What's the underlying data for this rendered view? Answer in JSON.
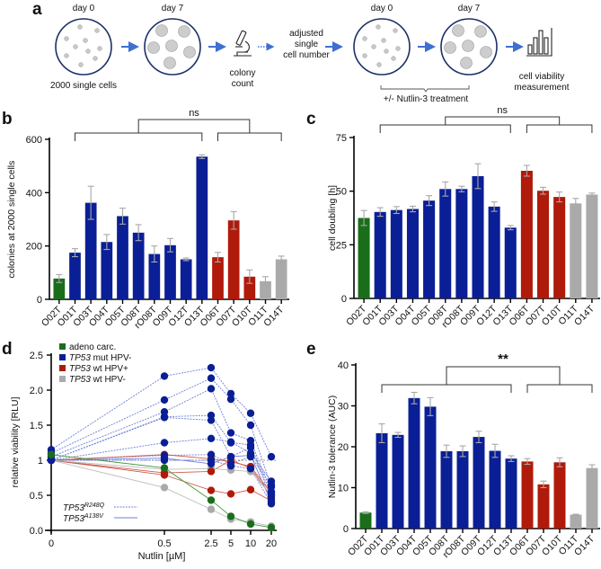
{
  "panels": {
    "a": {
      "letter": "a",
      "step1_top": "day 0",
      "step1_bottom": "2000 single cells",
      "step2_top": "day 7",
      "step3_label_1": "colony",
      "step3_label_2": "count",
      "step4_label_1": "adjusted",
      "step4_label_2": "single",
      "step4_label_3": "cell number",
      "step5_top": "day 0",
      "step6_top": "day 7",
      "treatment_label": "+/- Nutlin-3 treatment",
      "step7_label_1": "cell viability",
      "step7_label_2": "measurement",
      "icons": [
        "petri-dish-small-cells",
        "petri-dish-colonies",
        "microscope",
        "bar-chart"
      ]
    },
    "b": {
      "letter": "b"
    },
    "c": {
      "letter": "c"
    },
    "d": {
      "letter": "d"
    },
    "e": {
      "letter": "e"
    }
  },
  "colors": {
    "adeno": "#1a6e1a",
    "mut_hpv_neg": "#0a1f96",
    "wt_hpv_pos": "#b01a0a",
    "wt_hpv_neg": "#aaaaaa",
    "arrow": "#3f6fd1"
  },
  "chart_data": [
    {
      "id": "b",
      "type": "bar",
      "title": "",
      "xlabel": "",
      "ylabel": "colonies at 2000 single cells",
      "ylim": [
        0,
        600
      ],
      "yticks": [
        "0",
        "200",
        "400",
        "600"
      ],
      "categories": [
        "O02T",
        "O01T",
        "O03T",
        "O04T",
        "O05T",
        "O08T",
        "rO08T",
        "O09T",
        "O12T",
        "O13T",
        "O06T",
        "O07T",
        "O10T",
        "O11T",
        "O14T"
      ],
      "groups": [
        "adeno",
        "mut_hpv_neg",
        "mut_hpv_neg",
        "mut_hpv_neg",
        "mut_hpv_neg",
        "mut_hpv_neg",
        "mut_hpv_neg",
        "mut_hpv_neg",
        "mut_hpv_neg",
        "mut_hpv_neg",
        "wt_hpv_pos",
        "wt_hpv_pos",
        "wt_hpv_pos",
        "wt_hpv_neg",
        "wt_hpv_neg"
      ],
      "values": [
        78,
        175,
        362,
        215,
        312,
        250,
        170,
        203,
        150,
        535,
        158,
        296,
        85,
        68,
        150
      ],
      "errors": [
        15,
        15,
        62,
        28,
        30,
        30,
        30,
        25,
        5,
        7,
        18,
        33,
        25,
        17,
        12
      ],
      "significance": {
        "label": "ns",
        "left_group": [
          1,
          9
        ],
        "right_group": [
          10,
          14
        ]
      }
    },
    {
      "id": "c",
      "type": "bar",
      "title": "",
      "xlabel": "",
      "ylabel": "cell doubling [h]",
      "ylim": [
        0,
        75
      ],
      "yticks": [
        "0",
        "25",
        "50",
        "75"
      ],
      "categories": [
        "O02T",
        "O01T",
        "O03T",
        "O04T",
        "O05T",
        "O08T",
        "rO08T",
        "O09T",
        "O12T",
        "O13T",
        "O06T",
        "O07T",
        "O10T",
        "O11T",
        "O14T"
      ],
      "groups": [
        "adeno",
        "mut_hpv_neg",
        "mut_hpv_neg",
        "mut_hpv_neg",
        "mut_hpv_neg",
        "mut_hpv_neg",
        "mut_hpv_neg",
        "mut_hpv_neg",
        "mut_hpv_neg",
        "mut_hpv_neg",
        "wt_hpv_pos",
        "wt_hpv_pos",
        "wt_hpv_pos",
        "wt_hpv_neg",
        "wt_hpv_neg"
      ],
      "values": [
        37.5,
        40.3,
        41.2,
        41.7,
        45.6,
        51.0,
        51.0,
        57.0,
        42.8,
        33.0,
        59.5,
        50.2,
        47.3,
        44.3,
        48.4
      ],
      "errors": [
        3.5,
        2.0,
        1.6,
        1.3,
        2.3,
        3.3,
        1.3,
        5.8,
        2.2,
        1.0,
        2.5,
        1.6,
        2.3,
        2.3,
        0.7
      ],
      "significance": {
        "label": "ns",
        "left_group": [
          1,
          9
        ],
        "right_group": [
          10,
          14
        ]
      }
    },
    {
      "id": "d",
      "type": "line",
      "title": "",
      "xlabel": "Nutlin [µM]",
      "ylabel": "relative viability [RLU]",
      "ylim": [
        0,
        2.5
      ],
      "yticks": [
        "0.0",
        "0.5",
        "1",
        "1.5",
        "2.0",
        "2.5"
      ],
      "x": [
        0,
        0.5,
        2.5,
        5,
        10,
        20
      ],
      "xticks": [
        "0",
        "0.5",
        "2.5",
        "5",
        "10",
        "20"
      ],
      "reference_line": 1,
      "legend": [
        {
          "label_italic": "TP53",
          "label_rest": "",
          "label_full": "adeno carc.",
          "group": "adeno"
        },
        {
          "label_italic": "TP53",
          "label_rest": " mut HPV-",
          "group": "mut_hpv_neg"
        },
        {
          "label_italic": "TP53",
          "label_rest": " wt HPV+",
          "group": "wt_hpv_pos"
        },
        {
          "label_italic": "TP53",
          "label_rest": " wt HPV-",
          "group": "wt_hpv_neg"
        }
      ],
      "line_style_legend": [
        {
          "label": "TP53",
          "sup": "R248Q",
          "style": "dotted"
        },
        {
          "label": "TP53",
          "sup": "A138V",
          "style": "solid"
        }
      ],
      "series": [
        {
          "group": "mut_hpv_neg",
          "style": "dotted",
          "values": [
            1.15,
            2.2,
            2.32,
            1.95,
            1.67,
            1.05
          ]
        },
        {
          "group": "mut_hpv_neg",
          "style": "dotted",
          "values": [
            1.1,
            1.86,
            2.17,
            1.87,
            1.5,
            0.62
          ]
        },
        {
          "group": "mut_hpv_neg",
          "style": "dotted",
          "values": [
            1.05,
            1.69,
            2.02,
            1.39,
            1.28,
            0.55
          ]
        },
        {
          "group": "mut_hpv_neg",
          "style": "dotted",
          "values": [
            1.0,
            1.62,
            1.64,
            1.25,
            1.22,
            0.5
          ]
        },
        {
          "group": "mut_hpv_neg",
          "style": "dotted",
          "values": [
            1.0,
            1.61,
            1.57,
            1.05,
            1.18,
            0.45
          ]
        },
        {
          "group": "mut_hpv_neg",
          "style": "dotted",
          "values": [
            1.0,
            1.25,
            1.31,
            1.26,
            1.1,
            0.7
          ]
        },
        {
          "group": "mut_hpv_neg",
          "style": "dotted",
          "values": [
            1.0,
            1.07,
            1.08,
            0.95,
            1.05,
            0.65
          ]
        },
        {
          "group": "mut_hpv_neg",
          "style": "solid",
          "values": [
            1.0,
            1.03,
            0.95,
            1.05,
            1.07,
            0.4
          ]
        },
        {
          "group": "mut_hpv_neg",
          "style": "dotted",
          "values": [
            1.0,
            1.0,
            1.0,
            0.92,
            0.88,
            0.38
          ]
        },
        {
          "group": "wt_hpv_pos",
          "style": "solid",
          "values": [
            1.0,
            1.08,
            1.02,
            0.98,
            0.91,
            0.53
          ]
        },
        {
          "group": "wt_hpv_pos",
          "style": "solid",
          "values": [
            1.0,
            0.82,
            0.84,
            1.0,
            0.89,
            0.48
          ]
        },
        {
          "group": "wt_hpv_pos",
          "style": "solid",
          "values": [
            1.0,
            0.79,
            0.57,
            0.52,
            0.58,
            0.42
          ]
        },
        {
          "group": "wt_hpv_neg",
          "style": "solid",
          "values": [
            1.0,
            0.87,
            0.88,
            0.86,
            0.84,
            0.5
          ]
        },
        {
          "group": "wt_hpv_neg",
          "style": "solid",
          "values": [
            1.0,
            0.61,
            0.3,
            0.16,
            0.12,
            0.06
          ]
        },
        {
          "group": "adeno",
          "style": "solid",
          "values": [
            1.08,
            0.89,
            0.43,
            0.2,
            0.09,
            0.04
          ]
        }
      ]
    },
    {
      "id": "e",
      "type": "bar",
      "title": "",
      "xlabel": "",
      "ylabel": "Nutlin-3 tolerance (AUC)",
      "ylim": [
        0,
        40
      ],
      "yticks": [
        "0",
        "10",
        "20",
        "30",
        "40"
      ],
      "categories": [
        "O02T",
        "O01T",
        "O03T",
        "O04T",
        "O05T",
        "O08T",
        "rO08T",
        "O09T",
        "O12T",
        "O13T",
        "O06T",
        "O07T",
        "O10T",
        "O11T",
        "O14T"
      ],
      "groups": [
        "adeno",
        "mut_hpv_neg",
        "mut_hpv_neg",
        "mut_hpv_neg",
        "mut_hpv_neg",
        "mut_hpv_neg",
        "mut_hpv_neg",
        "mut_hpv_neg",
        "mut_hpv_neg",
        "mut_hpv_neg",
        "wt_hpv_pos",
        "wt_hpv_pos",
        "wt_hpv_pos",
        "wt_hpv_neg",
        "wt_hpv_neg"
      ],
      "values": [
        3.9,
        23.3,
        22.9,
        31.9,
        29.8,
        18.9,
        18.9,
        22.4,
        19.0,
        17.1,
        16.4,
        10.8,
        16.2,
        3.4,
        14.8
      ],
      "errors": [
        0.2,
        2.3,
        0.6,
        1.4,
        2.2,
        1.5,
        1.3,
        1.4,
        1.6,
        0.7,
        0.7,
        0.8,
        1.1,
        0.1,
        0.8
      ],
      "significance": {
        "label": "**",
        "left_group": [
          1,
          9
        ],
        "right_group": [
          10,
          14
        ]
      }
    }
  ]
}
